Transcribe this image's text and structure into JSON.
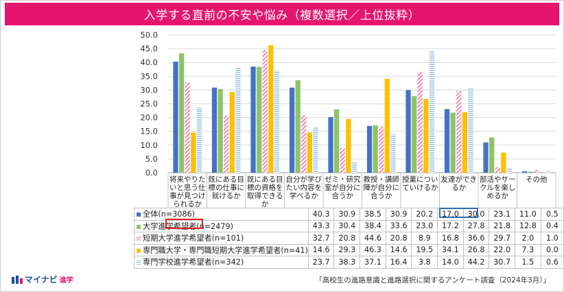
{
  "title": "入学する直前の不安や悩み（複数選択／上位抜粋）",
  "chart_data": {
    "type": "bar",
    "categories": [
      "将来やりたいと思う仕事が見つけられるか",
      "既にある目標の仕事に就けるか",
      "既にある目標の資格を取得できるか",
      "自分が学びたい内容を学べるか",
      "ゼミ・研究室が自分に合うか",
      "教授・講師陣が自分に合うか",
      "授業についていけるか",
      "友達ができるか",
      "部活やサークルを楽しめるか",
      "その他"
    ],
    "category_lines": [
      [
        "将来やりた",
        "いと思う仕",
        "事が見つけ",
        "られるか"
      ],
      [
        "既にある目",
        "標の仕事に",
        "就けるか"
      ],
      [
        "既にある目",
        "標の資格を",
        "取得できる",
        "か"
      ],
      [
        "自分が学び",
        "たい内容を",
        "学べるか"
      ],
      [
        "ゼミ・研究",
        "室が自分に",
        "合うか"
      ],
      [
        "教授・講師",
        "陣が自分に",
        "合うか"
      ],
      [
        "授業につい",
        "ていけるか"
      ],
      [
        "友達ができ",
        "るか"
      ],
      [
        "部活やサー",
        "クルを楽し",
        "めるか"
      ],
      [
        "その他"
      ]
    ],
    "series": [
      {
        "name": "全体(n=3086)",
        "color": "#4472c4",
        "pattern": "solid",
        "values": [
          40.3,
          30.9,
          38.5,
          30.9,
          20.2,
          17.0,
          30.0,
          23.1,
          11.0,
          0.5
        ]
      },
      {
        "name": "大学進学希望者(n=2479)",
        "color": "#8fc26a",
        "pattern": "solid",
        "values": [
          43.3,
          30.4,
          38.4,
          33.6,
          23.0,
          17.2,
          27.8,
          21.8,
          12.8,
          0.4
        ]
      },
      {
        "name": "短期大学進学希望者(n=101)",
        "color": "#f08bb4",
        "pattern": "diagonal",
        "values": [
          32.7,
          20.8,
          44.6,
          20.8,
          8.9,
          16.8,
          36.6,
          29.7,
          2.0,
          1.0
        ]
      },
      {
        "name": "専門職大学・専門職短期大学進学希望者(n=41)",
        "color": "#ffc000",
        "pattern": "solid",
        "values": [
          14.6,
          29.3,
          46.3,
          14.6,
          19.5,
          34.1,
          26.8,
          22.0,
          7.3,
          0.0
        ]
      },
      {
        "name": "専門学校進学希望者(n=342)",
        "color": "#9dc3e6",
        "pattern": "horizontal",
        "values": [
          23.7,
          38.3,
          37.1,
          16.4,
          3.8,
          14.0,
          44.2,
          30.7,
          1.5,
          0.6
        ]
      }
    ],
    "value_labels": [
      [
        "40.3",
        "30.9",
        "38.5",
        "30.9",
        "20.2",
        "17.0",
        "30.0",
        "23.1",
        "11.0",
        "0.5"
      ],
      [
        "43.3",
        "30.4",
        "38.4",
        "33.6",
        "23.0",
        "17.2",
        "27.8",
        "21.8",
        "12.8",
        "0.4"
      ],
      [
        "32.7",
        "20.8",
        "44.6",
        "20.8",
        "8.9",
        "16.8",
        "36.6",
        "29.7",
        "2.0",
        "1.0"
      ],
      [
        "14.6",
        "29.3",
        "46.3",
        "14.6",
        "19.5",
        "34.1",
        "26.8",
        "22.0",
        "7.3",
        "0.0"
      ],
      [
        "23.7",
        "38.3",
        "37.1",
        "16.4",
        "3.8",
        "14.0",
        "44.2",
        "30.7",
        "1.5",
        "0.6"
      ]
    ],
    "yticks": [
      "0.0",
      "5.0",
      "10.0",
      "15.0",
      "20.0",
      "25.0",
      "30.0",
      "35.0",
      "40.0",
      "45.0",
      "50.0"
    ],
    "ylim": [
      0,
      50
    ],
    "grid": true,
    "legend": "table"
  },
  "footer": {
    "logo_text": "マイナビ",
    "logo_sub": "進学",
    "source": "「高校生の進路意識と進路選択に関するアンケート調査（2024年3月）」"
  }
}
